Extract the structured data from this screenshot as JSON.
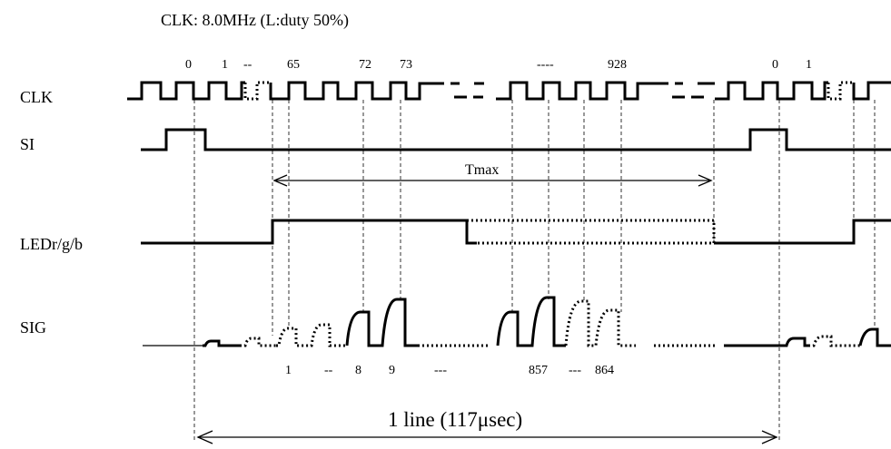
{
  "header": {
    "clock_spec": "CLK: 8.0MHz (L:duty 50%)"
  },
  "signals": {
    "clk": "CLK",
    "si": "SI",
    "led": "LEDr/g/b",
    "sig": "SIG"
  },
  "clk_counts": [
    "0",
    "1",
    "--",
    "65",
    "72",
    "73",
    "----",
    "928",
    "0",
    "1"
  ],
  "pixel_indices": [
    "1",
    "--",
    "8",
    "9",
    "---",
    "857",
    "---",
    "864"
  ],
  "tmax_label": "Tmax",
  "line_period_label": "1 line (117μsec)"
}
